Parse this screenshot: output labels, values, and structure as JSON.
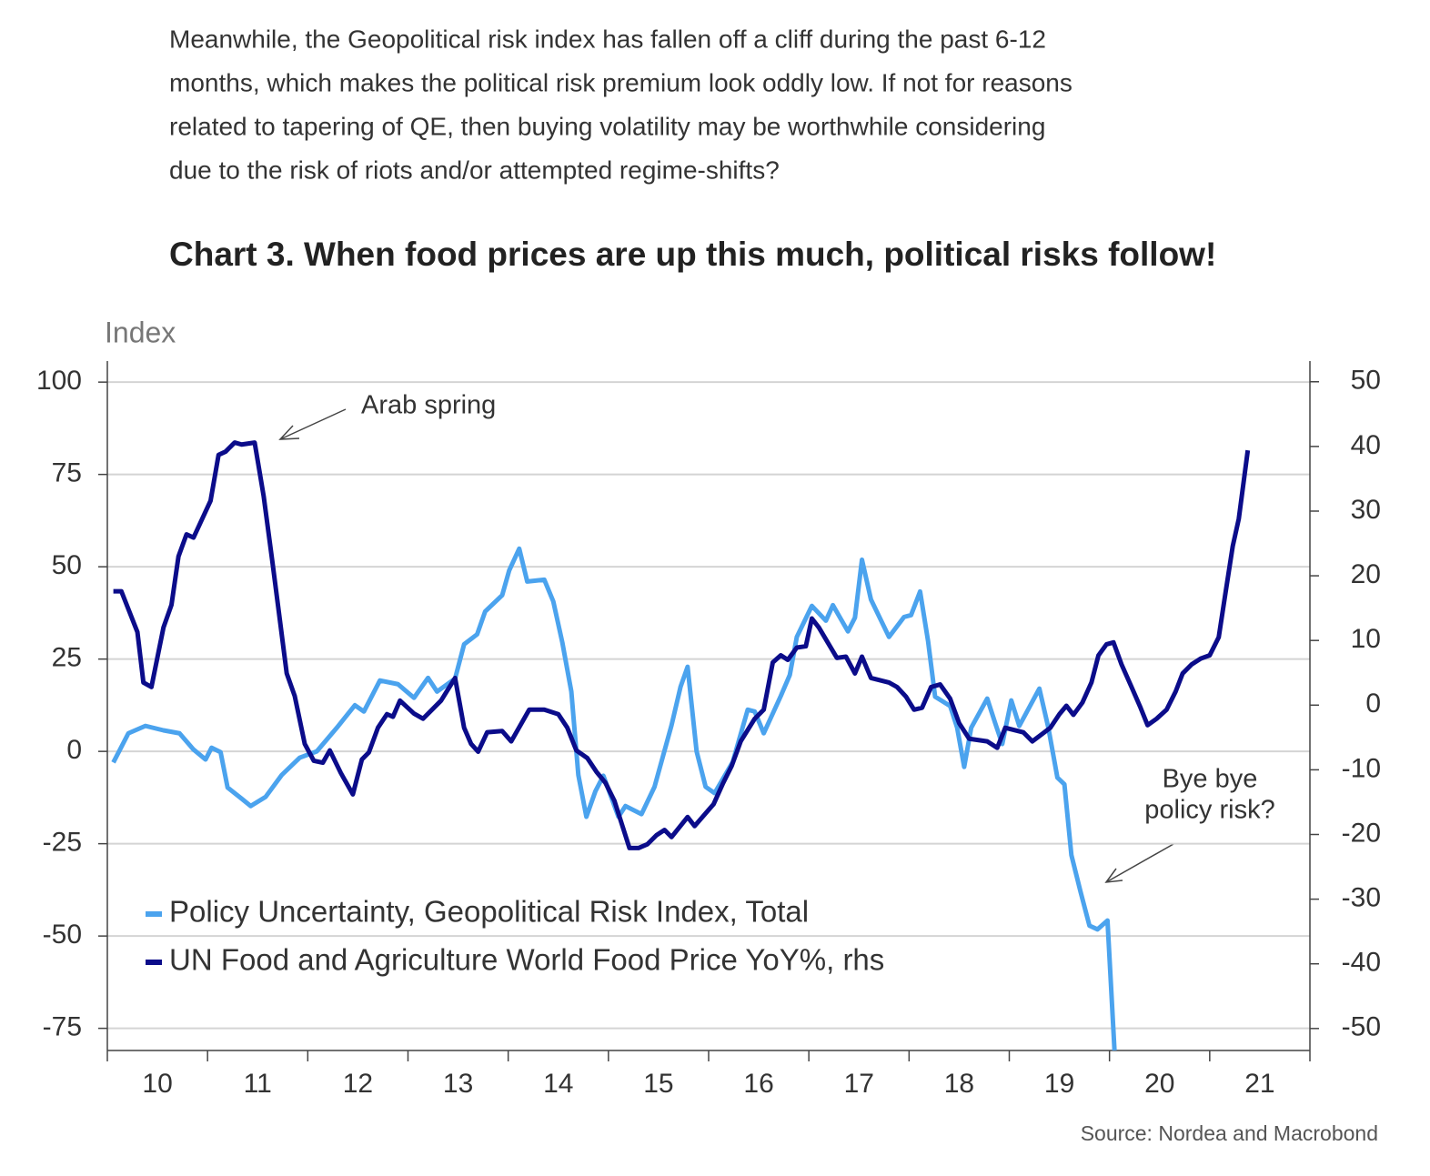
{
  "paragraph": [
    "Meanwhile, the Geopolitical risk index has fallen off a cliff during the past 6-12",
    "months, which makes the political risk premium look oddly low. If not for reasons",
    "related to tapering of QE, then buying volatility may be worthwhile considering",
    "due to the risk of riots and/or attempted regime-shifts?"
  ],
  "heading": "Chart 3. When food prices are up this much, political risks follow!",
  "chart_data": {
    "type": "line",
    "ylabel": "Index",
    "source": "Source: Nordea and Macrobond",
    "annotations": [
      {
        "text": "Arab spring"
      },
      {
        "lines": [
          "Bye bye",
          "policy risk?"
        ]
      }
    ],
    "xlim": [
      2010,
      2022
    ],
    "xticks": [
      {
        "value": 2010,
        "label": "10"
      },
      {
        "value": 2011,
        "label": "11"
      },
      {
        "value": 2012,
        "label": "12"
      },
      {
        "value": 2013,
        "label": "13"
      },
      {
        "value": 2014,
        "label": "14"
      },
      {
        "value": 2015,
        "label": "15"
      },
      {
        "value": 2016,
        "label": "16"
      },
      {
        "value": 2017,
        "label": "17"
      },
      {
        "value": 2018,
        "label": "18"
      },
      {
        "value": 2019,
        "label": "19"
      },
      {
        "value": 2020,
        "label": "20"
      },
      {
        "value": 2021,
        "label": "21"
      }
    ],
    "ylim": [
      -81,
      105.7
    ],
    "yticks": [
      -75,
      -50,
      -25,
      0,
      25,
      50,
      75,
      100
    ],
    "y2lim": [
      -53.4,
      53.2
    ],
    "y2ticks": [
      -50,
      -40,
      -30,
      -20,
      -10,
      0,
      10,
      20,
      30,
      40,
      50
    ],
    "grid": true,
    "legend": "lower left",
    "series": [
      {
        "name": "Policy Uncertainty,  Geopolitical Risk Index, Total",
        "color": "#4ba3ee",
        "x": [
          2010.06,
          2010.21,
          2010.38,
          2010.56,
          2010.72,
          2010.86,
          2010.98,
          2011.04,
          2011.13,
          2011.2,
          2011.34,
          2011.43,
          2011.58,
          2011.74,
          2011.92,
          2012.09,
          2012.29,
          2012.47,
          2012.56,
          2012.72,
          2012.9,
          2013.06,
          2013.2,
          2013.29,
          2013.47,
          2013.56,
          2013.69,
          2013.77,
          2013.94,
          2014.01,
          2014.11,
          2014.19,
          2014.36,
          2014.45,
          2014.54,
          2014.63,
          2014.7,
          2014.78,
          2014.87,
          2014.95,
          2015.1,
          2015.17,
          2015.33,
          2015.46,
          2015.63,
          2015.72,
          2015.79,
          2015.88,
          2015.97,
          2016.06,
          2016.24,
          2016.39,
          2016.46,
          2016.55,
          2016.72,
          2016.81,
          2016.88,
          2017.03,
          2017.17,
          2017.24,
          2017.39,
          2017.46,
          2017.53,
          2017.62,
          2017.8,
          2017.95,
          2018.02,
          2018.11,
          2018.19,
          2018.26,
          2018.41,
          2018.48,
          2018.55,
          2018.62,
          2018.78,
          2018.86,
          2018.93,
          2019.02,
          2019.1,
          2019.3,
          2019.39,
          2019.48,
          2019.55,
          2019.62,
          2019.71,
          2019.8,
          2019.88,
          2019.98,
          2020.05
        ],
        "values": [
          -3,
          4.9,
          6.9,
          5.7,
          4.9,
          0.5,
          -2.2,
          1.0,
          -0.2,
          -9.8,
          -12.8,
          -14.8,
          -12.3,
          -6.4,
          -1.7,
          0,
          6.4,
          12.5,
          10.8,
          19.2,
          18.2,
          14.5,
          19.9,
          16.2,
          19.7,
          29.0,
          31.7,
          37.9,
          42.3,
          49.0,
          54.9,
          46.0,
          46.5,
          40.6,
          29.5,
          16.2,
          -6.4,
          -17.7,
          -10.8,
          -6.6,
          -17.7,
          -14.8,
          -17.0,
          -9.6,
          7.1,
          17.5,
          22.9,
          0,
          -9.6,
          -11.3,
          -2.9,
          11.3,
          10.8,
          4.9,
          15.0,
          20.7,
          31.0,
          39.4,
          35.4,
          39.6,
          32.5,
          36.2,
          51.9,
          41.1,
          31.0,
          36.4,
          36.9,
          43.3,
          29.8,
          14.8,
          12.3,
          6.4,
          -4.2,
          6.4,
          14.3,
          7.6,
          2.0,
          13.8,
          6.9,
          17.0,
          6.4,
          -7.1,
          -8.9,
          -28.1,
          -37.9,
          -47.2,
          -48.2,
          -45.8,
          -81
        ]
      },
      {
        "name": "UN Food and Agriculture World Food Price YoY%, rhs",
        "color": "#0b0c8a",
        "axis": "y2",
        "x": [
          2010.06,
          2010.14,
          2010.3,
          2010.36,
          2010.44,
          2010.56,
          2010.64,
          2010.71,
          2010.79,
          2010.86,
          2011.03,
          2011.11,
          2011.18,
          2011.27,
          2011.34,
          2011.47,
          2011.56,
          2011.65,
          2011.79,
          2011.87,
          2011.97,
          2012.06,
          2012.15,
          2012.22,
          2012.33,
          2012.45,
          2012.54,
          2012.61,
          2012.7,
          2012.79,
          2012.85,
          2012.92,
          2013.06,
          2013.15,
          2013.33,
          2013.47,
          2013.56,
          2013.63,
          2013.7,
          2013.79,
          2013.94,
          2014.03,
          2014.21,
          2014.36,
          2014.5,
          2014.59,
          2014.68,
          2014.79,
          2014.88,
          2014.97,
          2015.06,
          2015.14,
          2015.21,
          2015.3,
          2015.39,
          2015.48,
          2015.56,
          2015.63,
          2015.79,
          2015.86,
          2016.05,
          2016.14,
          2016.23,
          2016.32,
          2016.46,
          2016.55,
          2016.64,
          2016.72,
          2016.79,
          2016.88,
          2016.97,
          2017.03,
          2017.1,
          2017.28,
          2017.37,
          2017.46,
          2017.53,
          2017.62,
          2017.8,
          2017.88,
          2017.97,
          2018.05,
          2018.13,
          2018.22,
          2018.31,
          2018.41,
          2018.5,
          2018.6,
          2018.78,
          2018.88,
          2018.96,
          2019.14,
          2019.23,
          2019.41,
          2019.5,
          2019.57,
          2019.64,
          2019.73,
          2019.82,
          2019.89,
          2019.97,
          2020.04,
          2020.12,
          2020.22,
          2020.31,
          2020.38,
          2020.47,
          2020.57,
          2020.66,
          2020.73,
          2020.82,
          2020.91,
          2021.0,
          2021.09,
          2021.16,
          2021.23,
          2021.29,
          2021.38
        ],
        "values": [
          17.6,
          17.6,
          11.3,
          3.5,
          2.8,
          12.0,
          15.5,
          23.0,
          26.4,
          25.9,
          31.6,
          38.7,
          39.2,
          40.6,
          40.3,
          40.6,
          32.3,
          21.8,
          4.9,
          1.4,
          -6.0,
          -8.6,
          -8.9,
          -7.0,
          -10.5,
          -13.8,
          -8.4,
          -7.3,
          -3.5,
          -1.4,
          -1.8,
          0.7,
          -1.3,
          -2.1,
          0.7,
          4.2,
          -3.5,
          -6.0,
          -7.2,
          -4.2,
          -4.0,
          -5.6,
          -0.7,
          -0.7,
          -1.4,
          -3.5,
          -7.0,
          -8.2,
          -10.3,
          -12.0,
          -14.8,
          -18.7,
          -22.1,
          -22.1,
          -21.5,
          -20.1,
          -19.3,
          -20.4,
          -17.3,
          -18.7,
          -15.3,
          -12.2,
          -9.4,
          -5.6,
          -2.1,
          -0.7,
          6.6,
          7.7,
          7.0,
          8.9,
          9.1,
          13.4,
          12.0,
          7.3,
          7.5,
          4.9,
          7.5,
          4.2,
          3.5,
          2.8,
          1.3,
          -0.7,
          -0.4,
          2.8,
          3.2,
          1.0,
          -2.8,
          -5.2,
          -5.6,
          -6.6,
          -3.5,
          -4.2,
          -5.6,
          -3.5,
          -1.4,
          -0.1,
          -1.5,
          0.4,
          3.5,
          7.7,
          9.4,
          9.7,
          6.3,
          2.8,
          -0.4,
          -3.1,
          -2.1,
          -0.7,
          2.1,
          4.9,
          6.3,
          7.2,
          7.7,
          10.5,
          17.6,
          24.6,
          28.8,
          39.4
        ]
      }
    ]
  }
}
